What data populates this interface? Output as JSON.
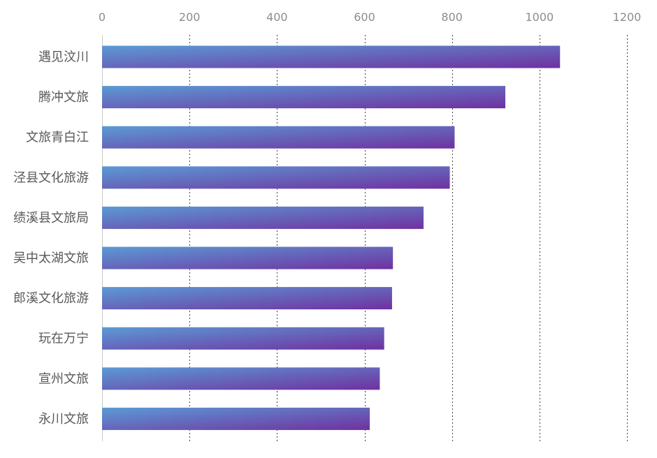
{
  "chart_data": {
    "type": "bar",
    "orientation": "horizontal",
    "categories": [
      "遇见汶川",
      "腾冲文旅",
      "文旅青白江",
      "泾县文化旅游",
      "绩溪县文旅局",
      "吴中太湖文旅",
      "郎溪文化旅游",
      "玩在万宁",
      "宣州文旅",
      "永川文旅"
    ],
    "values": [
      1047,
      922,
      806,
      795,
      735,
      665,
      663,
      645,
      635,
      612
    ],
    "xlim": [
      0,
      1200
    ],
    "xticks": [
      0,
      200,
      400,
      600,
      800,
      1000,
      1200
    ],
    "x_axis_position": "top",
    "grid": true,
    "legend": "none",
    "bar_gradient": [
      "#5b9bd5",
      "#7030a0"
    ],
    "title": "",
    "xlabel": "",
    "ylabel": ""
  }
}
